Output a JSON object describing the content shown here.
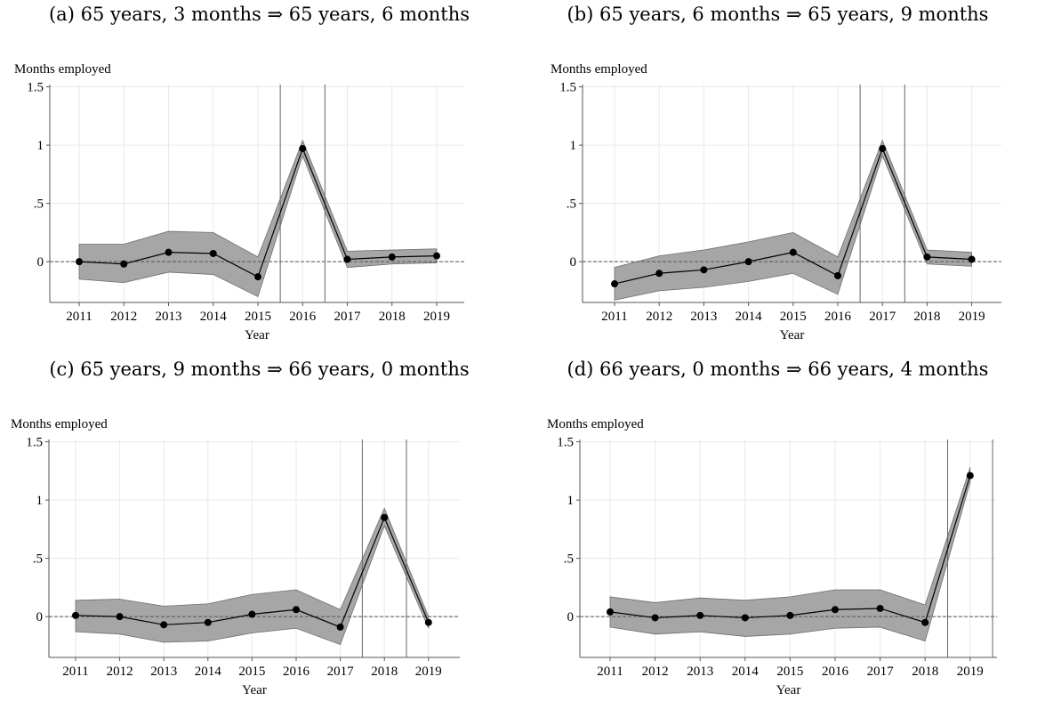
{
  "chart_data": [
    {
      "type": "line",
      "panel_label": "(a)",
      "title": "65 years, 3 months ⇒ 65 years, 6 months",
      "ylabel": "Months employed",
      "xlabel": "Year",
      "x": [
        2011,
        2012,
        2013,
        2014,
        2015,
        2016,
        2017,
        2018,
        2019
      ],
      "ylim": [
        -0.35,
        1.52
      ],
      "yticks": [
        0,
        0.5,
        1,
        1.5
      ],
      "ytick_labels": [
        "0",
        ".5",
        "1",
        "1.5"
      ],
      "series": [
        {
          "values": [
            0.0,
            -0.02,
            0.08,
            0.07,
            -0.13,
            0.97,
            0.02,
            0.04,
            0.05
          ],
          "ci_lower": [
            -0.15,
            -0.18,
            -0.09,
            -0.11,
            -0.3,
            0.91,
            -0.05,
            -0.02,
            -0.01
          ],
          "ci_upper": [
            0.15,
            0.15,
            0.26,
            0.25,
            0.04,
            1.04,
            0.09,
            0.1,
            0.11
          ]
        }
      ],
      "vlines": [
        2015.5,
        2016.5
      ],
      "hline": 0,
      "grid": true
    },
    {
      "type": "line",
      "panel_label": "(b)",
      "title": "65 years, 6 months ⇒ 65 years, 9 months",
      "ylabel": "Months employed",
      "xlabel": "Year",
      "x": [
        2011,
        2012,
        2013,
        2014,
        2015,
        2016,
        2017,
        2018,
        2019
      ],
      "ylim": [
        -0.35,
        1.52
      ],
      "yticks": [
        0,
        0.5,
        1,
        1.5
      ],
      "ytick_labels": [
        "0",
        ".5",
        "1",
        "1.5"
      ],
      "series": [
        {
          "values": [
            -0.19,
            -0.1,
            -0.07,
            0.0,
            0.08,
            -0.12,
            0.97,
            0.04,
            0.02
          ],
          "ci_lower": [
            -0.33,
            -0.25,
            -0.22,
            -0.17,
            -0.1,
            -0.28,
            0.91,
            -0.02,
            -0.04
          ],
          "ci_upper": [
            -0.05,
            0.05,
            0.1,
            0.17,
            0.25,
            0.04,
            1.04,
            0.1,
            0.08
          ]
        }
      ],
      "vlines": [
        2016.5,
        2017.5
      ],
      "hline": 0,
      "grid": true
    },
    {
      "type": "line",
      "panel_label": "(c)",
      "title": "65 years, 9 months ⇒ 66 years, 0 months",
      "ylabel": "Months employed",
      "xlabel": "Year",
      "x": [
        2011,
        2012,
        2013,
        2014,
        2015,
        2016,
        2017,
        2018,
        2019
      ],
      "ylim": [
        -0.35,
        1.52
      ],
      "yticks": [
        0,
        0.5,
        1,
        1.5
      ],
      "ytick_labels": [
        "0",
        ".5",
        "1",
        "1.5"
      ],
      "series": [
        {
          "values": [
            0.01,
            0.0,
            -0.07,
            -0.05,
            0.02,
            0.06,
            -0.09,
            0.85,
            -0.05
          ],
          "ci_lower": [
            -0.13,
            -0.15,
            -0.22,
            -0.21,
            -0.14,
            -0.1,
            -0.24,
            0.78,
            -0.1
          ],
          "ci_upper": [
            0.14,
            0.15,
            0.09,
            0.11,
            0.19,
            0.23,
            0.06,
            0.93,
            0.0
          ]
        }
      ],
      "vlines": [
        2017.5,
        2018.5
      ],
      "hline": 0,
      "grid": true
    },
    {
      "type": "line",
      "panel_label": "(d)",
      "title": "66 years, 0 months ⇒ 66 years, 4 months",
      "ylabel": "Months employed",
      "xlabel": "Year",
      "x": [
        2011,
        2012,
        2013,
        2014,
        2015,
        2016,
        2017,
        2018,
        2019
      ],
      "ylim": [
        -0.35,
        1.52
      ],
      "yticks": [
        0,
        0.5,
        1,
        1.5
      ],
      "ytick_labels": [
        "0",
        ".5",
        "1",
        "1.5"
      ],
      "series": [
        {
          "values": [
            0.04,
            -0.01,
            0.01,
            -0.01,
            0.01,
            0.06,
            0.07,
            -0.05,
            1.21
          ],
          "ci_lower": [
            -0.09,
            -0.15,
            -0.13,
            -0.17,
            -0.15,
            -0.1,
            -0.09,
            -0.21,
            1.15
          ],
          "ci_upper": [
            0.17,
            0.12,
            0.16,
            0.14,
            0.17,
            0.23,
            0.23,
            0.1,
            1.28
          ]
        }
      ],
      "vlines": [
        2018.5,
        2019.5
      ],
      "hline": 0,
      "grid": true
    }
  ]
}
